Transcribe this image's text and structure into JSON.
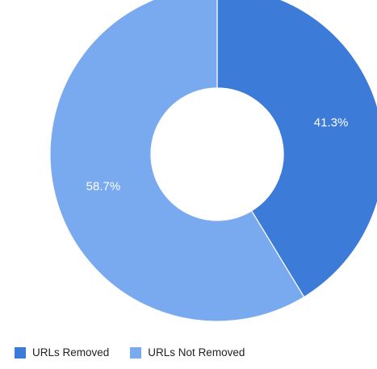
{
  "chart_data": {
    "type": "pie",
    "donut": true,
    "start_angle_deg": 0,
    "labels": [
      "URLs Removed",
      "URLs Not Removed"
    ],
    "values": [
      41.3,
      58.7
    ],
    "value_labels": [
      "41.3%",
      "58.7%"
    ],
    "colors": [
      "#3d7bd9",
      "#79a9ef"
    ],
    "label_color": "#ffffff",
    "legend_position": "bottom-left"
  }
}
